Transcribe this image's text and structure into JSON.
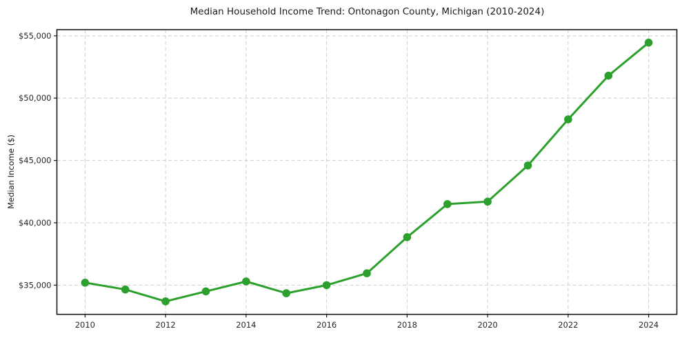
{
  "figure": {
    "background": "#ffffff"
  },
  "chart_data": {
    "type": "line",
    "title": "Median Household Income Trend: Ontonagon County, Michigan (2010-2024)",
    "xlabel": "",
    "ylabel": "Median Income ($)",
    "x": [
      2010,
      2011,
      2012,
      2013,
      2014,
      2015,
      2016,
      2017,
      2018,
      2019,
      2020,
      2021,
      2022,
      2023,
      2024
    ],
    "series": [
      {
        "name": "Median Household Income",
        "color": "#2ca02c",
        "values": [
          35200,
          34650,
          33700,
          34500,
          35300,
          34350,
          35000,
          35950,
          38850,
          41500,
          41700,
          44600,
          48300,
          51800,
          54450
        ],
        "marker": "circle",
        "marker_size": 5.8,
        "line_width": 3
      }
    ],
    "xlim": [
      2009.3,
      2024.7
    ],
    "ylim": [
      32660,
      55490
    ],
    "x_ticks": [
      2010,
      2012,
      2014,
      2016,
      2018,
      2020,
      2022,
      2024
    ],
    "x_tick_labels": [
      "2010",
      "2012",
      "2014",
      "2016",
      "2018",
      "2020",
      "2022",
      "2024"
    ],
    "y_ticks": [
      35000,
      40000,
      45000,
      50000,
      55000
    ],
    "y_tick_labels": [
      "$35,000",
      "$40,000",
      "$45,000",
      "$50,000",
      "$55,000"
    ],
    "grid": true,
    "grid_style": "dashed",
    "grid_color": "#cdcdcd",
    "axis_color": "#1a1a1a",
    "tick_label_color": "#262626",
    "legend_position": "none"
  }
}
